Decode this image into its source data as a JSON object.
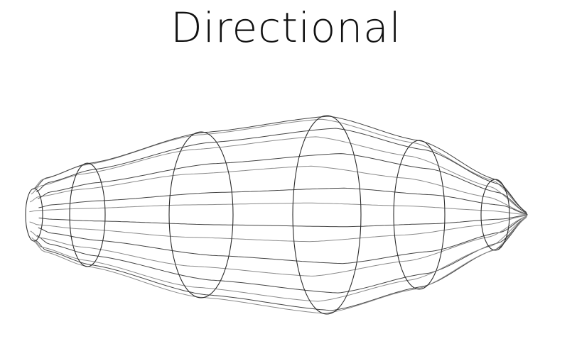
{
  "title": "Directional",
  "colors": {
    "background": "#ffffff",
    "line": "#2a2a2a",
    "text": "#111111"
  }
}
